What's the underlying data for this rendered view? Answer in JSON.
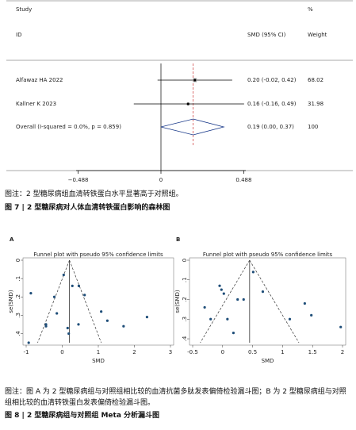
{
  "forest": {
    "header": {
      "study": "Study",
      "pct": "%",
      "id": "ID",
      "smd": "SMD (95% CI)",
      "weight": "Weight"
    },
    "rows": [
      {
        "study": "Alfawaz HA 2022",
        "smd": 0.2,
        "lo": -0.02,
        "hi": 0.42,
        "ci_label": "0.20 (-0.02, 0.42)",
        "weight": 68.02
      },
      {
        "study": "Kallner K 2023",
        "smd": 0.16,
        "lo": -0.16,
        "hi": 0.49,
        "ci_label": "0.16 (-0.16, 0.49)",
        "weight": 31.98
      }
    ],
    "overall": {
      "label": "Overall  (I-squared = 0.0%, p = 0.859)",
      "smd": 0.19,
      "lo": 0.0,
      "hi": 0.37,
      "ci_label": "0.19 (0.00, 0.37)",
      "weight": 100.0
    },
    "xlim": [
      -0.5,
      0.5
    ],
    "xticks": [
      {
        "value": -0.488,
        "label": "−0.488"
      },
      0,
      0.488
    ]
  },
  "caption7": {
    "note": "图注：2 型糖尿病组血清转铁蛋白水平显著高于对照组。",
    "title": "图 7 | 2 型糖尿病对人体血清转铁蛋白影响的森林图"
  },
  "funnels": [
    {
      "panel": "A",
      "title": "Funnel plot with pseudo 95% confidence limits",
      "xlabel": "SMD",
      "ylabel": "se(SMD)",
      "pooled": 0.2,
      "xlim": [
        -1,
        3
      ],
      "xticks": [
        -1,
        0,
        1,
        2,
        3
      ],
      "ylim": [
        0,
        0.45
      ],
      "yticks": [
        0,
        {
          "value": 0.1,
          "label": ".1"
        },
        {
          "value": 0.2,
          "label": ".2"
        },
        {
          "value": 0.3,
          "label": ".3"
        },
        {
          "value": 0.4,
          "label": ".4"
        }
      ],
      "x": [
        -0.87,
        0.04,
        0.28,
        -0.22,
        0.46,
        0.62,
        -0.15,
        -0.45,
        -0.45,
        0.45,
        1.08,
        1.25,
        1.7,
        2.35,
        0.15,
        0.18,
        -0.93
      ],
      "se": [
        0.18,
        0.08,
        0.14,
        0.2,
        0.14,
        0.19,
        0.29,
        0.35,
        0.36,
        0.35,
        0.28,
        0.33,
        0.36,
        0.31,
        0.37,
        0.4,
        0.45
      ]
    },
    {
      "panel": "B",
      "title": "Funnel plot with pseudo 95% confidence limits",
      "xlabel": "SMD",
      "ylabel": "se(SMD)",
      "pooled": 0.45,
      "xlim": [
        -0.5,
        2
      ],
      "xticks": [
        -0.5,
        0,
        0.5,
        1,
        1.5,
        2
      ],
      "ylim": [
        0,
        0.42
      ],
      "yticks": [
        0,
        {
          "value": 0.1,
          "label": ".1"
        },
        {
          "value": 0.2,
          "label": ".2"
        },
        {
          "value": 0.3,
          "label": ".3"
        },
        {
          "value": 0.4,
          "label": ".4"
        }
      ],
      "x": [
        0.51,
        -0.05,
        -0.02,
        0.02,
        0.67,
        0.25,
        0.35,
        -0.3,
        -0.2,
        0.08,
        1.12,
        1.37,
        1.48,
        1.97,
        0.18
      ],
      "se": [
        0.06,
        0.13,
        0.15,
        0.17,
        0.16,
        0.2,
        0.2,
        0.24,
        0.3,
        0.3,
        0.3,
        0.22,
        0.28,
        0.34,
        0.37
      ]
    }
  ],
  "caption8": {
    "note": "图注：图 A 为 2 型糖尿病组与对照组相比较的血清抗菌多肽发表偏倚检验漏斗图；B 为 2 型糖尿病组与对照组相比较的血清转铁蛋白发表偏倚检验漏斗图。",
    "title": "图 8 | 2 型糖尿病组与对照组 Meta 分析漏斗图"
  }
}
